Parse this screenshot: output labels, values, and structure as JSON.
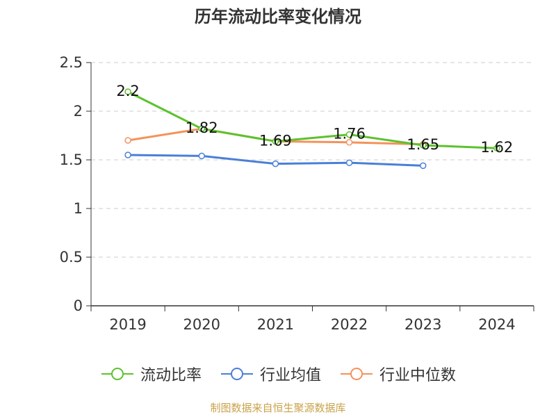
{
  "chart_data": {
    "type": "line",
    "title": "历年流动比率变化情况",
    "categories": [
      "2019",
      "2020",
      "2021",
      "2022",
      "2023",
      "2024"
    ],
    "ylim": [
      0,
      2.5
    ],
    "yticks": [
      "0",
      "0.5",
      "1",
      "1.5",
      "2",
      "2.5"
    ],
    "ytick_values": [
      0,
      0.5,
      1,
      1.5,
      2,
      2.5
    ],
    "grid": true,
    "legend_position": "bottom",
    "series": [
      {
        "name": "流动比率",
        "color": "#5cc22d",
        "values": [
          2.2,
          1.82,
          1.69,
          1.76,
          1.65,
          1.62
        ],
        "labels": [
          "2.2",
          "1.82",
          "1.69",
          "1.76",
          "1.65",
          "1.62"
        ]
      },
      {
        "name": "行业均值",
        "color": "#4a7fd8",
        "values": [
          1.55,
          1.54,
          1.46,
          1.47,
          1.44,
          null
        ]
      },
      {
        "name": "行业中位数",
        "color": "#f4925a",
        "values": [
          1.7,
          1.82,
          1.69,
          1.68,
          1.66,
          null
        ]
      }
    ]
  },
  "source": "制图数据来自恒生聚源数据库"
}
